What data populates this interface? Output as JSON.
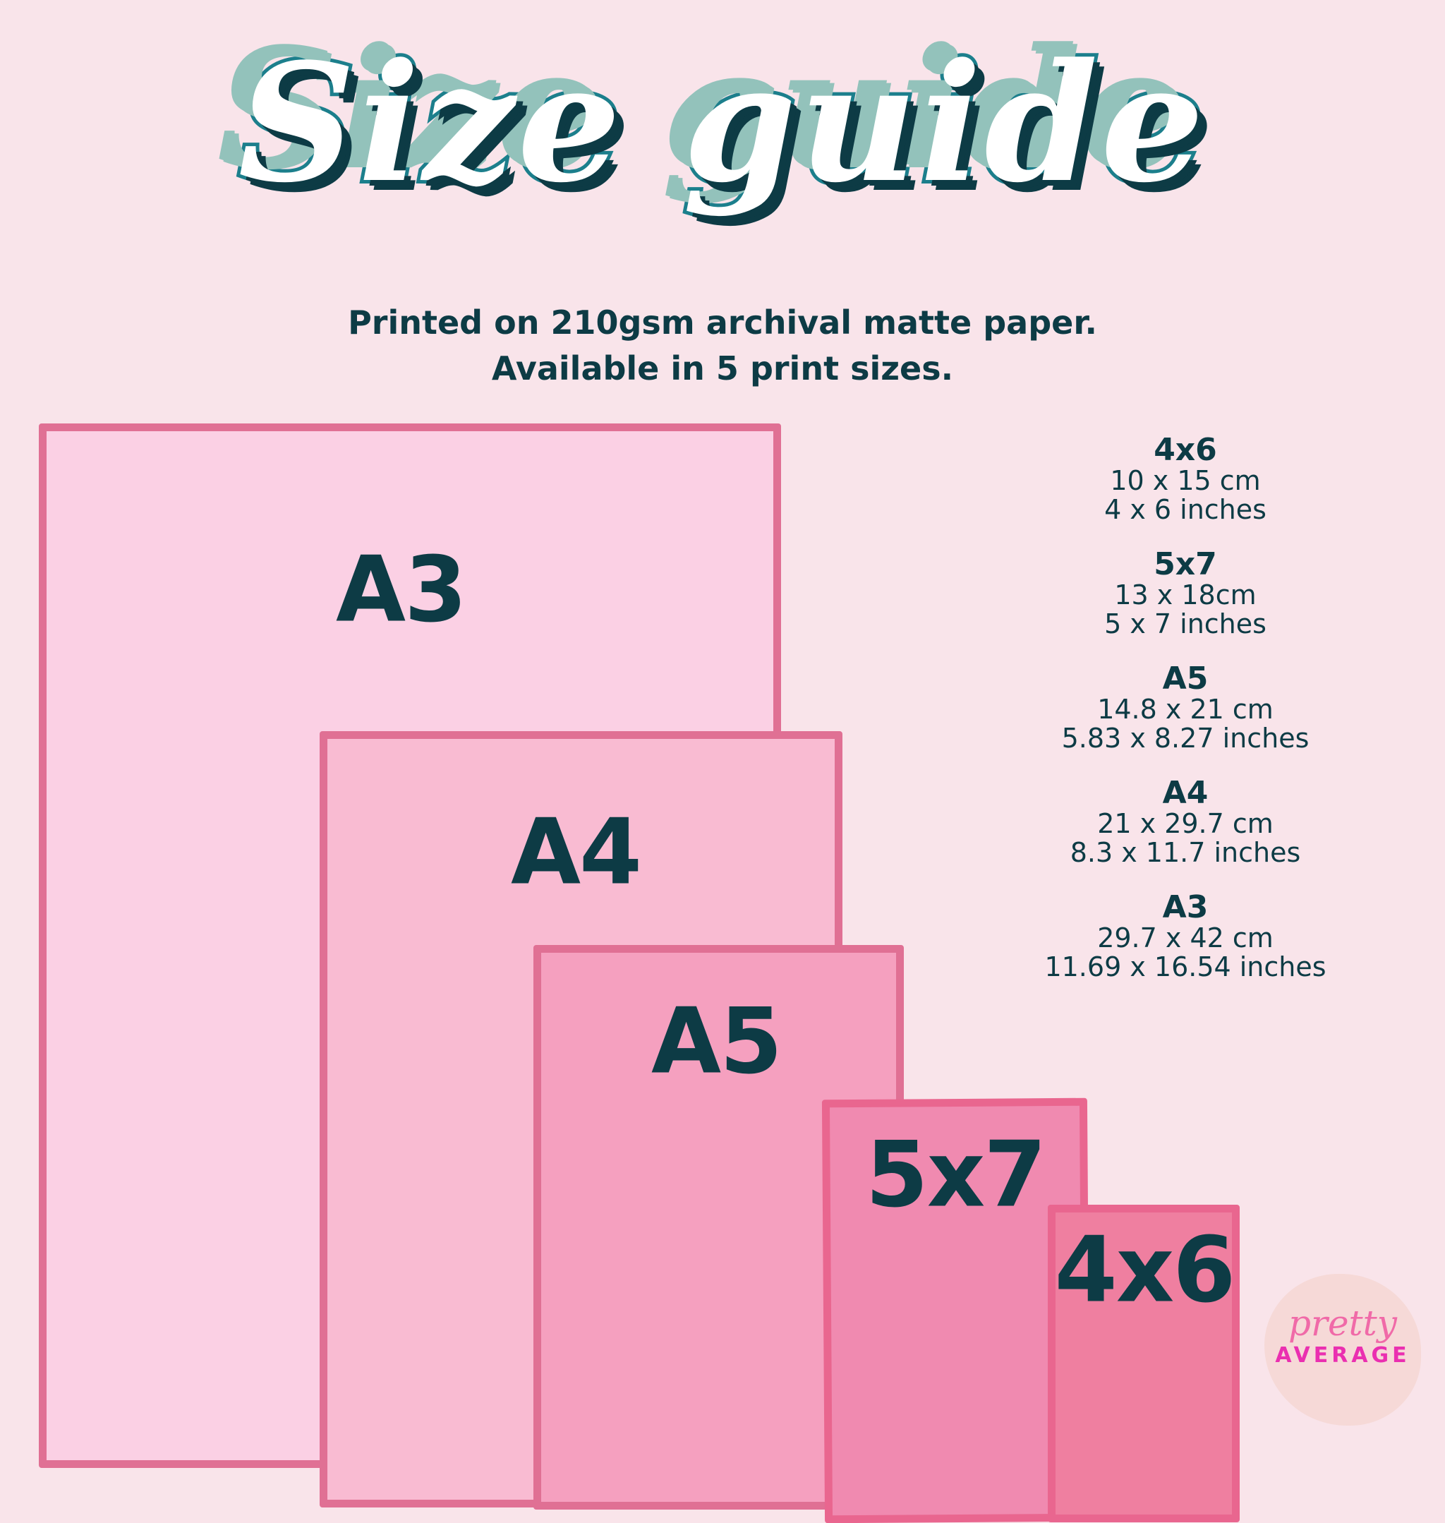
{
  "title": "Size guide",
  "subtitle": [
    "Printed on 210gsm archival matte paper.",
    "Available in 5 print sizes."
  ],
  "rectangles": [
    {
      "label": "A3",
      "fill": "#fbd0e4",
      "border": "#e07094"
    },
    {
      "label": "A4",
      "fill": "#f9bbd2",
      "border": "#e07094"
    },
    {
      "label": "A5",
      "fill": "#f5a0bf",
      "border": "#e07094"
    },
    {
      "label": "5x7",
      "fill": "#f08ab0",
      "border": "#e9668f"
    },
    {
      "label": "4x6",
      "fill": "#ef7fa0",
      "border": "#e9668f"
    }
  ],
  "specs": [
    {
      "name": "4x6",
      "cm": "10 x 15 cm",
      "inches": "4 x 6 inches"
    },
    {
      "name": "5x7",
      "cm": "13 x 18cm",
      "inches": "5 x 7 inches"
    },
    {
      "name": "A5",
      "cm": "14.8 x 21 cm",
      "inches": "5.83 x 8.27 inches"
    },
    {
      "name": "A4",
      "cm": "21 x 29.7 cm",
      "inches": "8.3 x 11.7 inches"
    },
    {
      "name": "A3",
      "cm": "29.7 x 42 cm",
      "inches": "11.69 x 16.54 inches"
    }
  ],
  "logo": {
    "script": "pretty",
    "word": "AVERAGE"
  },
  "colors": {
    "text": "#0d3b45",
    "background": "#f9e4ea",
    "title_teal": "#1c7f8c",
    "title_shadow": "#93c2bb"
  }
}
